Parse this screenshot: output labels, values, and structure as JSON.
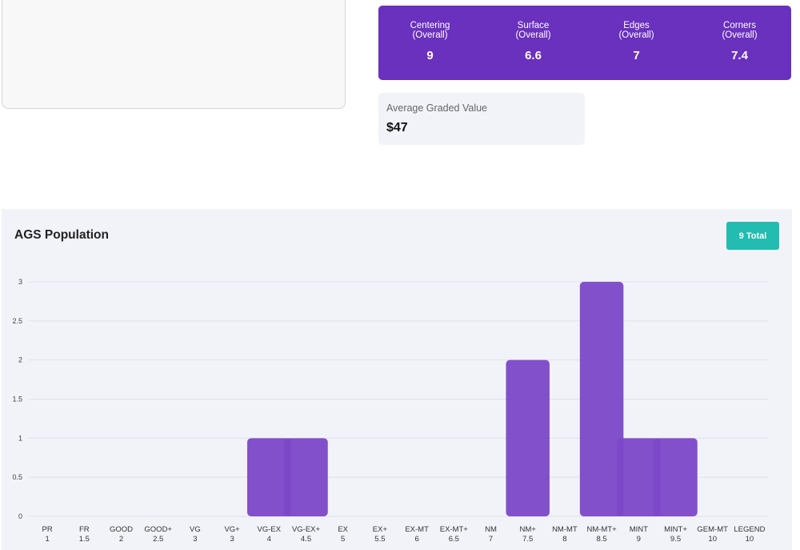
{
  "subgrades": [
    {
      "label": "Centering\n(Overall)",
      "value": "9"
    },
    {
      "label": "Surface\n(Overall)",
      "value": "6.6"
    },
    {
      "label": "Edges\n(Overall)",
      "value": "7"
    },
    {
      "label": "Corners\n(Overall)",
      "value": "7.4"
    }
  ],
  "average": {
    "label": "Average Graded Value",
    "value": "$47"
  },
  "population": {
    "title": "AGS Population",
    "total_label": "9 Total"
  },
  "colors": {
    "bar": "#7b47c8",
    "bar_overlap": "#6a33bf",
    "header": "#6a30be",
    "badge": "#22bcb0"
  },
  "chart_data": {
    "type": "bar",
    "title": "AGS Population",
    "categories": [
      {
        "name": "PR",
        "grade": "1"
      },
      {
        "name": "FR",
        "grade": "1.5"
      },
      {
        "name": "GOOD",
        "grade": "2"
      },
      {
        "name": "GOOD+",
        "grade": "2.5"
      },
      {
        "name": "VG",
        "grade": "3"
      },
      {
        "name": "VG+",
        "grade": "3"
      },
      {
        "name": "VG-EX",
        "grade": "4"
      },
      {
        "name": "VG-EX+",
        "grade": "4.5"
      },
      {
        "name": "EX",
        "grade": "5"
      },
      {
        "name": "EX+",
        "grade": "5.5"
      },
      {
        "name": "EX-MT",
        "grade": "6"
      },
      {
        "name": "EX-MT+",
        "grade": "6.5"
      },
      {
        "name": "NM",
        "grade": "7"
      },
      {
        "name": "NM+",
        "grade": "7.5"
      },
      {
        "name": "NM-MT",
        "grade": "8"
      },
      {
        "name": "NM-MT+",
        "grade": "8.5"
      },
      {
        "name": "MINT",
        "grade": "9"
      },
      {
        "name": "MINT+",
        "grade": "9.5"
      },
      {
        "name": "GEM-MT",
        "grade": "10"
      },
      {
        "name": "LEGEND",
        "grade": "10"
      }
    ],
    "values": [
      0,
      0,
      0,
      0,
      0,
      0,
      1,
      1,
      0,
      0,
      0,
      0,
      0,
      2,
      0,
      3,
      1,
      1,
      0,
      0
    ],
    "ylim": [
      0,
      3
    ],
    "yticks": [
      "0",
      "0.5",
      "1",
      "1.5",
      "2",
      "2.5",
      "3"
    ],
    "grid": true
  }
}
